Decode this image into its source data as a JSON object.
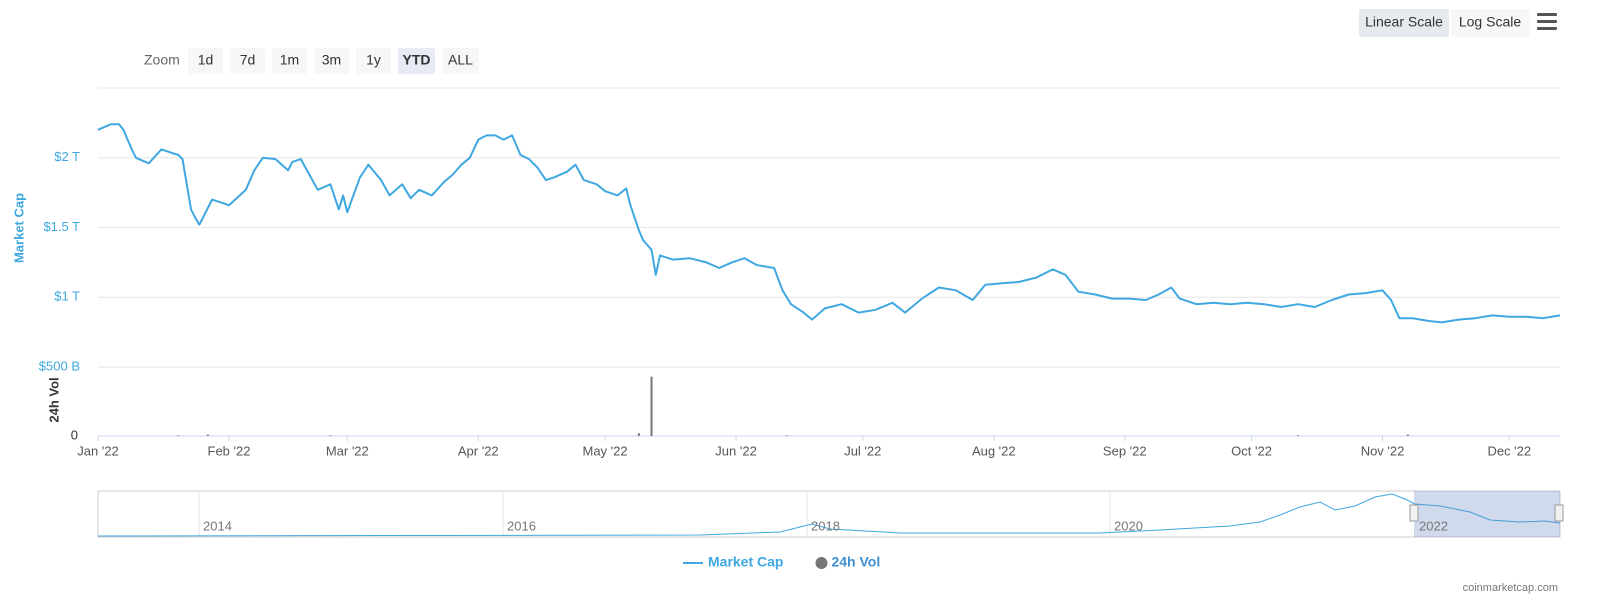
{
  "chart_data": {
    "type": "line",
    "y_axis_title": "Market Cap",
    "y2_axis_title": "24h Vol",
    "x": [
      0,
      3,
      5,
      6,
      8,
      9,
      12,
      15,
      19,
      20,
      22,
      23,
      24,
      27,
      31,
      35,
      37,
      39,
      42,
      45,
      46,
      48,
      50,
      52,
      55,
      57,
      58,
      59,
      62,
      64,
      67,
      69,
      72,
      74,
      76,
      79,
      82,
      84,
      86,
      88,
      90,
      92,
      94,
      96,
      98,
      100,
      102,
      104,
      106,
      108,
      111,
      113,
      115,
      118,
      120,
      123,
      125,
      126,
      128,
      129,
      131,
      132,
      133,
      136,
      140,
      144,
      147,
      150,
      153,
      156,
      160,
      162,
      164,
      167,
      169,
      172,
      176,
      180,
      184,
      188,
      191,
      195,
      199,
      203,
      207,
      210,
      214,
      218,
      222,
      226,
      229,
      232,
      236,
      240,
      244,
      248,
      251,
      254,
      256,
      260,
      264,
      268,
      272,
      276,
      280,
      284,
      288,
      292,
      296,
      300,
      304,
      306,
      308,
      311,
      315,
      318,
      322,
      326,
      330,
      334,
      338,
      342,
      346
    ],
    "xlim": [
      0,
      346
    ],
    "xticks": [
      {
        "value": 0,
        "label": "Jan '22"
      },
      {
        "value": 31,
        "label": "Feb '22"
      },
      {
        "value": 59,
        "label": "Mar '22"
      },
      {
        "value": 90,
        "label": "Apr '22"
      },
      {
        "value": 120,
        "label": "May '22"
      },
      {
        "value": 151,
        "label": "Jun '22"
      },
      {
        "value": 181,
        "label": "Jul '22"
      },
      {
        "value": 212,
        "label": "Aug '22"
      },
      {
        "value": 243,
        "label": "Sep '22"
      },
      {
        "value": 273,
        "label": "Oct '22"
      },
      {
        "value": 304,
        "label": "Nov '22"
      },
      {
        "value": 334,
        "label": "Dec '22"
      }
    ],
    "ylim": [
      0.5,
      2.5
    ],
    "yticks": [
      {
        "value": 0.5,
        "label": "$500 B"
      },
      {
        "value": 1,
        "label": "$1 T"
      },
      {
        "value": 1.5,
        "label": "$1.5 T"
      },
      {
        "value": 2,
        "label": "$2 T"
      }
    ],
    "y2lim": [
      0,
      0.5
    ],
    "y2ticks": [
      0
    ],
    "grid": true,
    "series": [
      {
        "name": "Market Cap",
        "color": "#3fa8e0",
        "values": [
          2.2,
          2.24,
          2.24,
          2.2,
          2.06,
          2.0,
          1.96,
          2.06,
          2.02,
          1.99,
          1.63,
          1.57,
          1.52,
          1.7,
          1.66,
          1.77,
          1.91,
          2.0,
          1.99,
          1.91,
          1.97,
          1.99,
          1.88,
          1.77,
          1.81,
          1.63,
          1.73,
          1.61,
          1.86,
          1.95,
          1.84,
          1.73,
          1.81,
          1.71,
          1.77,
          1.73,
          1.83,
          1.88,
          1.95,
          2.0,
          2.13,
          2.16,
          2.16,
          2.13,
          2.16,
          2.02,
          1.99,
          1.93,
          1.84,
          1.86,
          1.9,
          1.95,
          1.84,
          1.81,
          1.76,
          1.73,
          1.78,
          1.66,
          1.48,
          1.41,
          1.34,
          1.16,
          1.3,
          1.27,
          1.28,
          1.25,
          1.21,
          1.25,
          1.28,
          1.23,
          1.21,
          1.05,
          0.95,
          0.89,
          0.84,
          0.92,
          0.95,
          0.89,
          0.91,
          0.96,
          0.89,
          0.99,
          1.07,
          1.05,
          0.98,
          1.09,
          1.1,
          1.11,
          1.14,
          1.2,
          1.16,
          1.04,
          1.02,
          0.99,
          0.99,
          0.98,
          1.02,
          1.07,
          0.99,
          0.95,
          0.96,
          0.95,
          0.96,
          0.95,
          0.93,
          0.95,
          0.93,
          0.98,
          1.02,
          1.03,
          1.05,
          0.98,
          0.85,
          0.85,
          0.83,
          0.82,
          0.84,
          0.85,
          0.87,
          0.86,
          0.86,
          0.85,
          0.87
        ]
      },
      {
        "name": "24h Vol",
        "color": "#777777",
        "axis": "y2",
        "x": [
          19,
          26,
          55,
          128,
          131,
          163,
          284,
          310
        ],
        "values": [
          0.005,
          0.01,
          0.005,
          0.02,
          0.43,
          0.005,
          0.005,
          0.01
        ]
      }
    ]
  },
  "controls": {
    "zoom_label": "Zoom",
    "zoom_buttons": [
      "1d",
      "7d",
      "1m",
      "3m",
      "1y",
      "YTD",
      "ALL"
    ],
    "scale_buttons": [
      "Linear Scale",
      "Log Scale"
    ]
  },
  "navigator": {
    "labels": [
      "2014",
      "2016",
      "2018",
      "2020",
      "2022"
    ]
  },
  "credit": "coinmarketcap.com"
}
